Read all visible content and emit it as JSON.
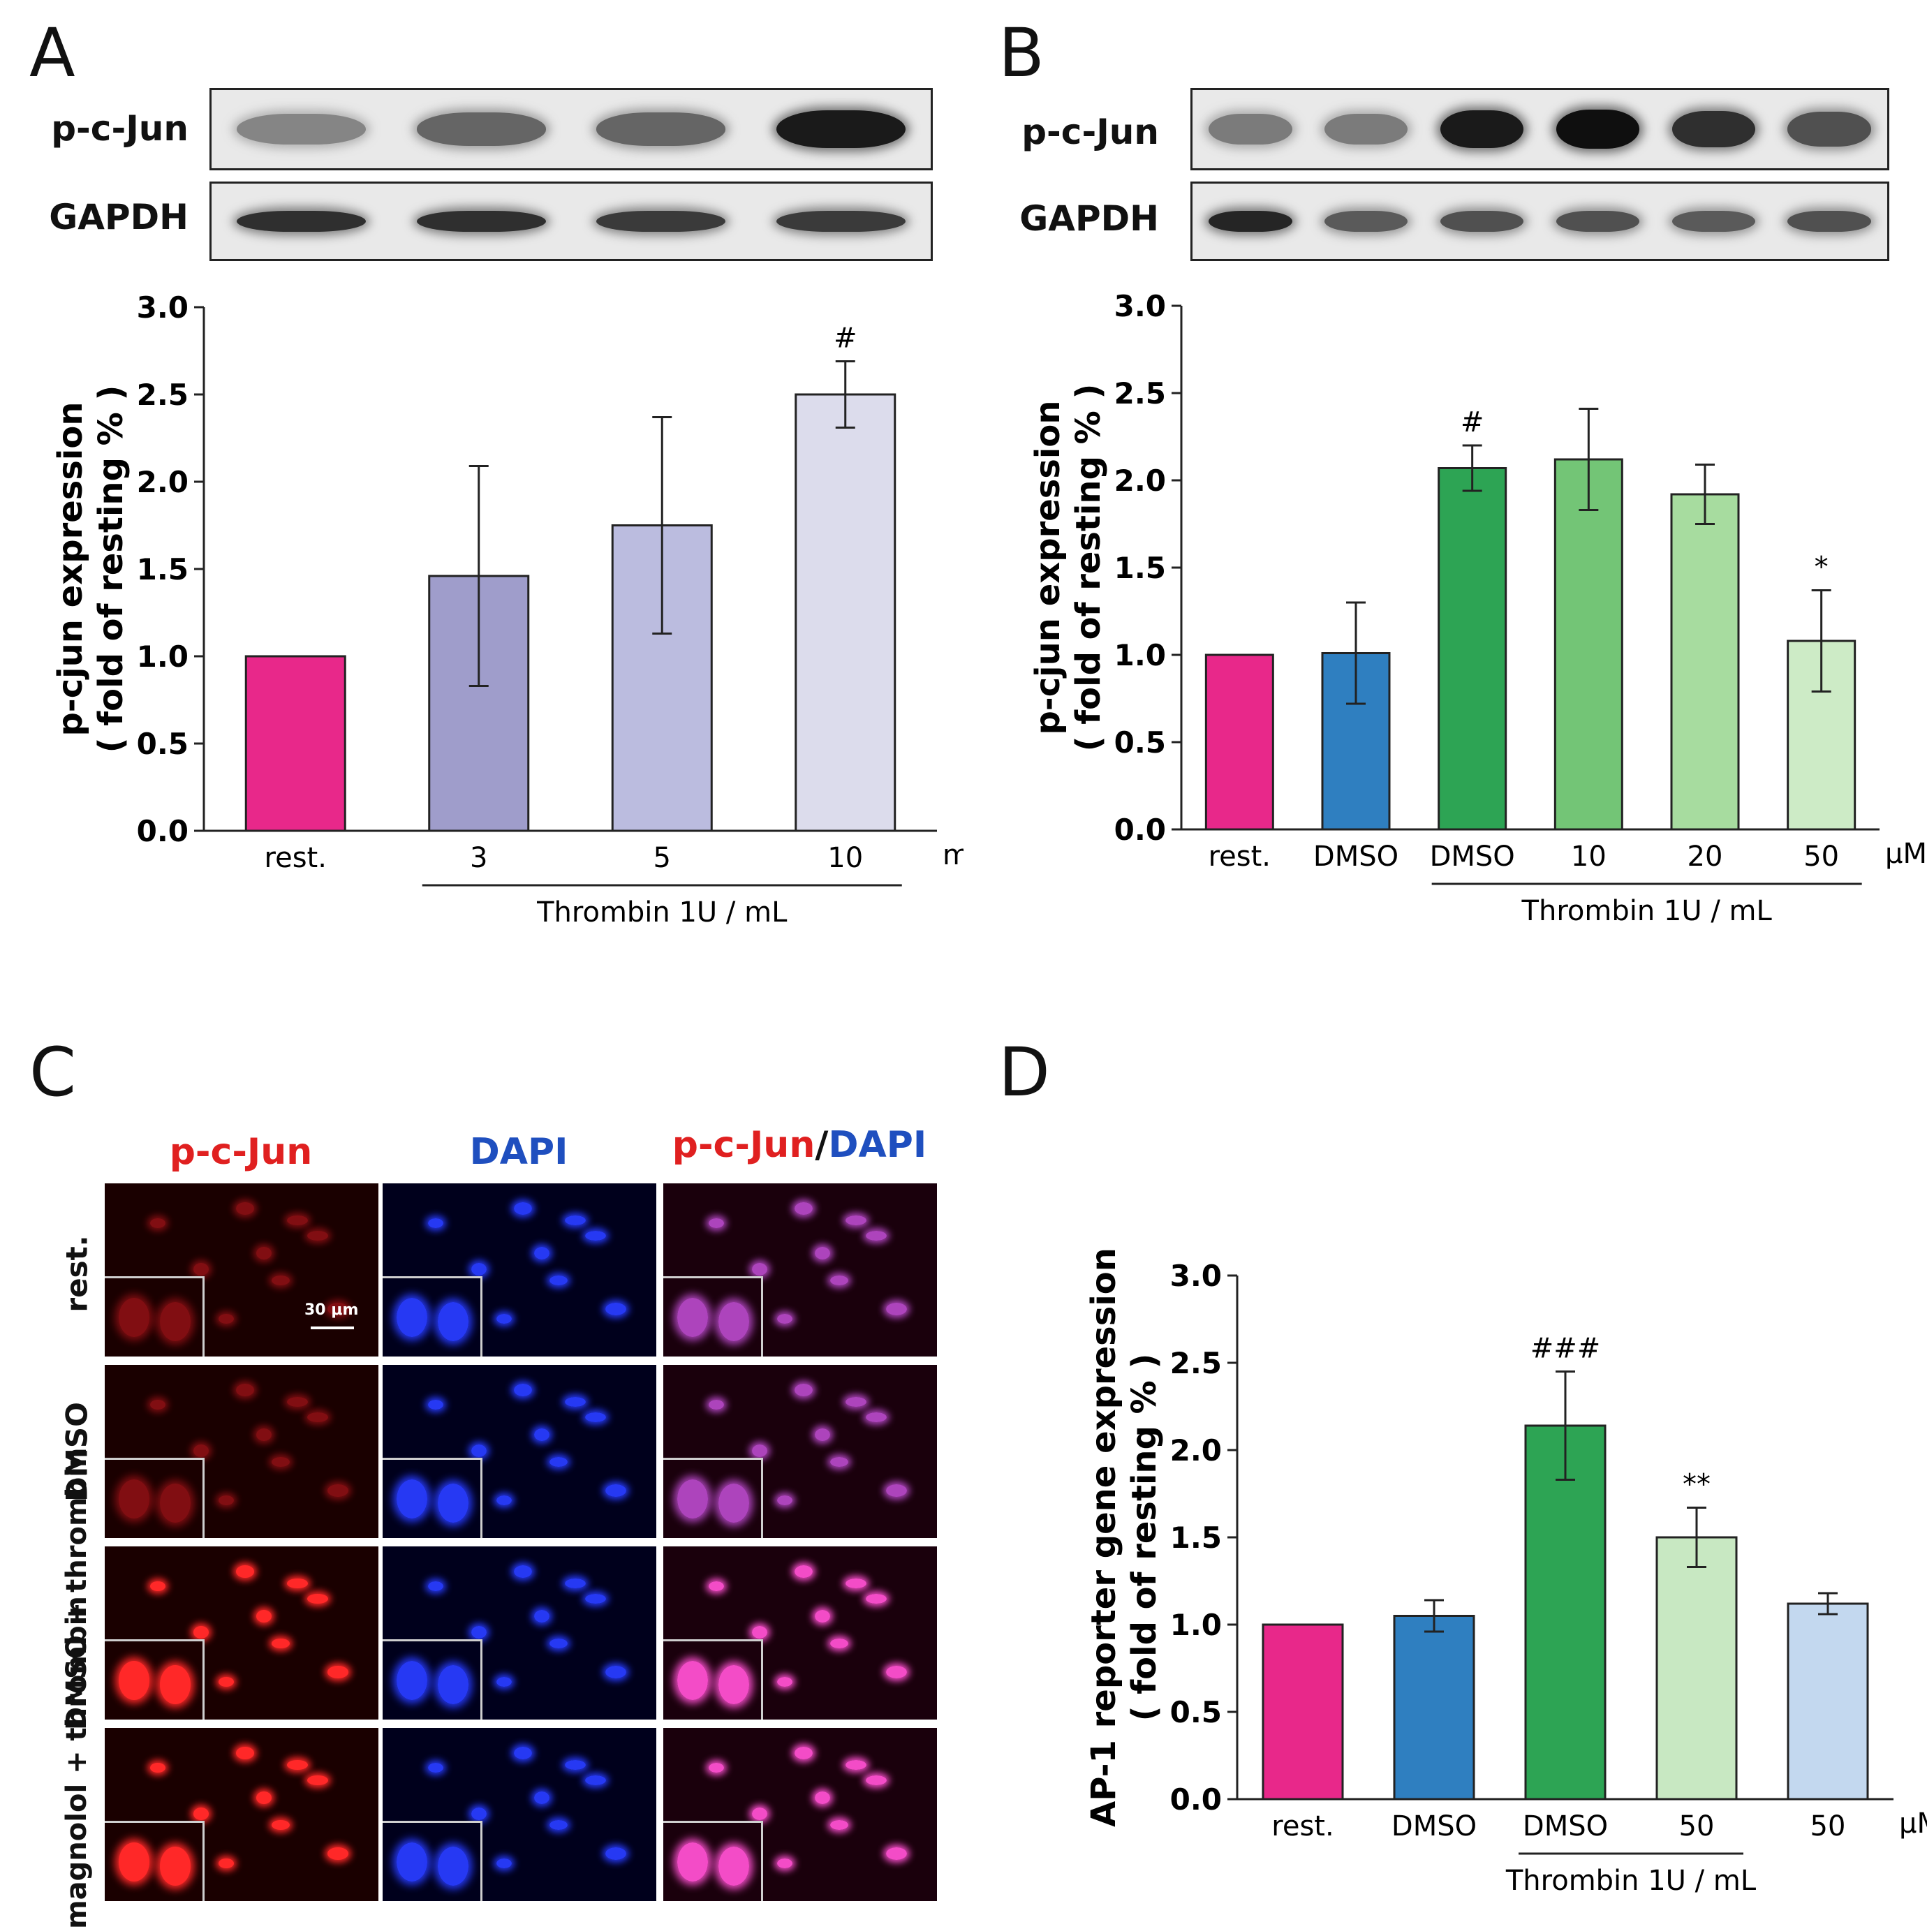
{
  "panels": {
    "A": {
      "letter": "A",
      "blots": [
        {
          "label": "p-c-Jun",
          "band_intensity": [
            0.45,
            0.6,
            0.6,
            0.95
          ]
        },
        {
          "label": "GAPDH",
          "band_intensity": [
            0.85,
            0.85,
            0.8,
            0.8
          ]
        }
      ]
    },
    "B": {
      "letter": "B",
      "blots": [
        {
          "label": "p-c-Jun",
          "band_intensity": [
            0.5,
            0.5,
            0.95,
            1.0,
            0.85,
            0.7
          ]
        },
        {
          "label": "GAPDH",
          "band_intensity": [
            0.9,
            0.65,
            0.7,
            0.7,
            0.65,
            0.7
          ]
        }
      ]
    },
    "C": {
      "letter": "C",
      "column_labels": {
        "pcjun": "p-c-Jun",
        "dapi": "DAPI",
        "merge_pcjun": "p-c-Jun",
        "merge_sep": "/",
        "merge_dapi": "DAPI"
      },
      "row_labels": [
        "rest.",
        "DMSO",
        "DMSO + thrombin",
        "magnolol + thrombin"
      ],
      "scale_bar": "30 μm",
      "colors": {
        "pcjun": "#e02020",
        "dapi": "#1f4fbf"
      }
    },
    "D": {
      "letter": "D"
    }
  },
  "chart_data": [
    {
      "id": "A",
      "type": "bar",
      "categories": [
        "rest.",
        "3",
        "5",
        "10"
      ],
      "values": [
        1.0,
        1.46,
        1.75,
        2.5
      ],
      "errors": [
        0,
        0.63,
        0.62,
        0.19
      ],
      "colors": [
        "#e8288a",
        "#9f9dcb",
        "#bbbcdf",
        "#dcdcec"
      ],
      "annotations": [
        "",
        "",
        "",
        "#"
      ],
      "unit_label": "min",
      "group_label": "Thrombin 1U / mL",
      "group_span": [
        1,
        3
      ],
      "ylabel_line1": "p-cjun expression",
      "ylabel_line2": "( fold of resting % )",
      "ylim": [
        0,
        3.0
      ],
      "yticks": [
        "0.0",
        "0.5",
        "1.0",
        "1.5",
        "2.0",
        "2.5",
        "3.0"
      ]
    },
    {
      "id": "B",
      "type": "bar",
      "categories": [
        "rest.",
        "DMSO",
        "DMSO",
        "10",
        "20",
        "50"
      ],
      "values": [
        1.0,
        1.01,
        2.07,
        2.12,
        1.92,
        1.08
      ],
      "errors": [
        0,
        0.29,
        0.13,
        0.29,
        0.17,
        0.29
      ],
      "colors": [
        "#e8288a",
        "#2f7fc0",
        "#2da454",
        "#73c576",
        "#a7dc9f",
        "#cdebc6"
      ],
      "annotations": [
        "",
        "",
        "#",
        "",
        "",
        "*"
      ],
      "unit_label": "μM",
      "group_label": "Thrombin 1U / mL",
      "group_span": [
        2,
        5
      ],
      "ylabel_line1": "p-cjun expression",
      "ylabel_line2": "( fold of resting % )",
      "ylim": [
        0,
        3.0
      ],
      "yticks": [
        "0.0",
        "0.5",
        "1.0",
        "1.5",
        "2.0",
        "2.5",
        "3.0"
      ]
    },
    {
      "id": "D",
      "type": "bar",
      "categories": [
        "rest.",
        "DMSO",
        "DMSO",
        "50",
        "50"
      ],
      "values": [
        1.0,
        1.05,
        2.14,
        1.5,
        1.12
      ],
      "errors": [
        0,
        0.09,
        0.31,
        0.17,
        0.06
      ],
      "colors": [
        "#e8288a",
        "#2f7fc0",
        "#2da454",
        "#c8e8c2",
        "#c3d8ef"
      ],
      "annotations": [
        "",
        "",
        "###",
        "**",
        ""
      ],
      "unit_label": "μM",
      "group_label": "Thrombin 1U / mL",
      "group_span": [
        2,
        3
      ],
      "ylabel_line1": "AP-1 reporter gene expression",
      "ylabel_line2": "( fold of resting % )",
      "ylim": [
        0,
        3.0
      ],
      "yticks": [
        "0.0",
        "0.5",
        "1.0",
        "1.5",
        "2.0",
        "2.5",
        "3.0"
      ]
    }
  ]
}
